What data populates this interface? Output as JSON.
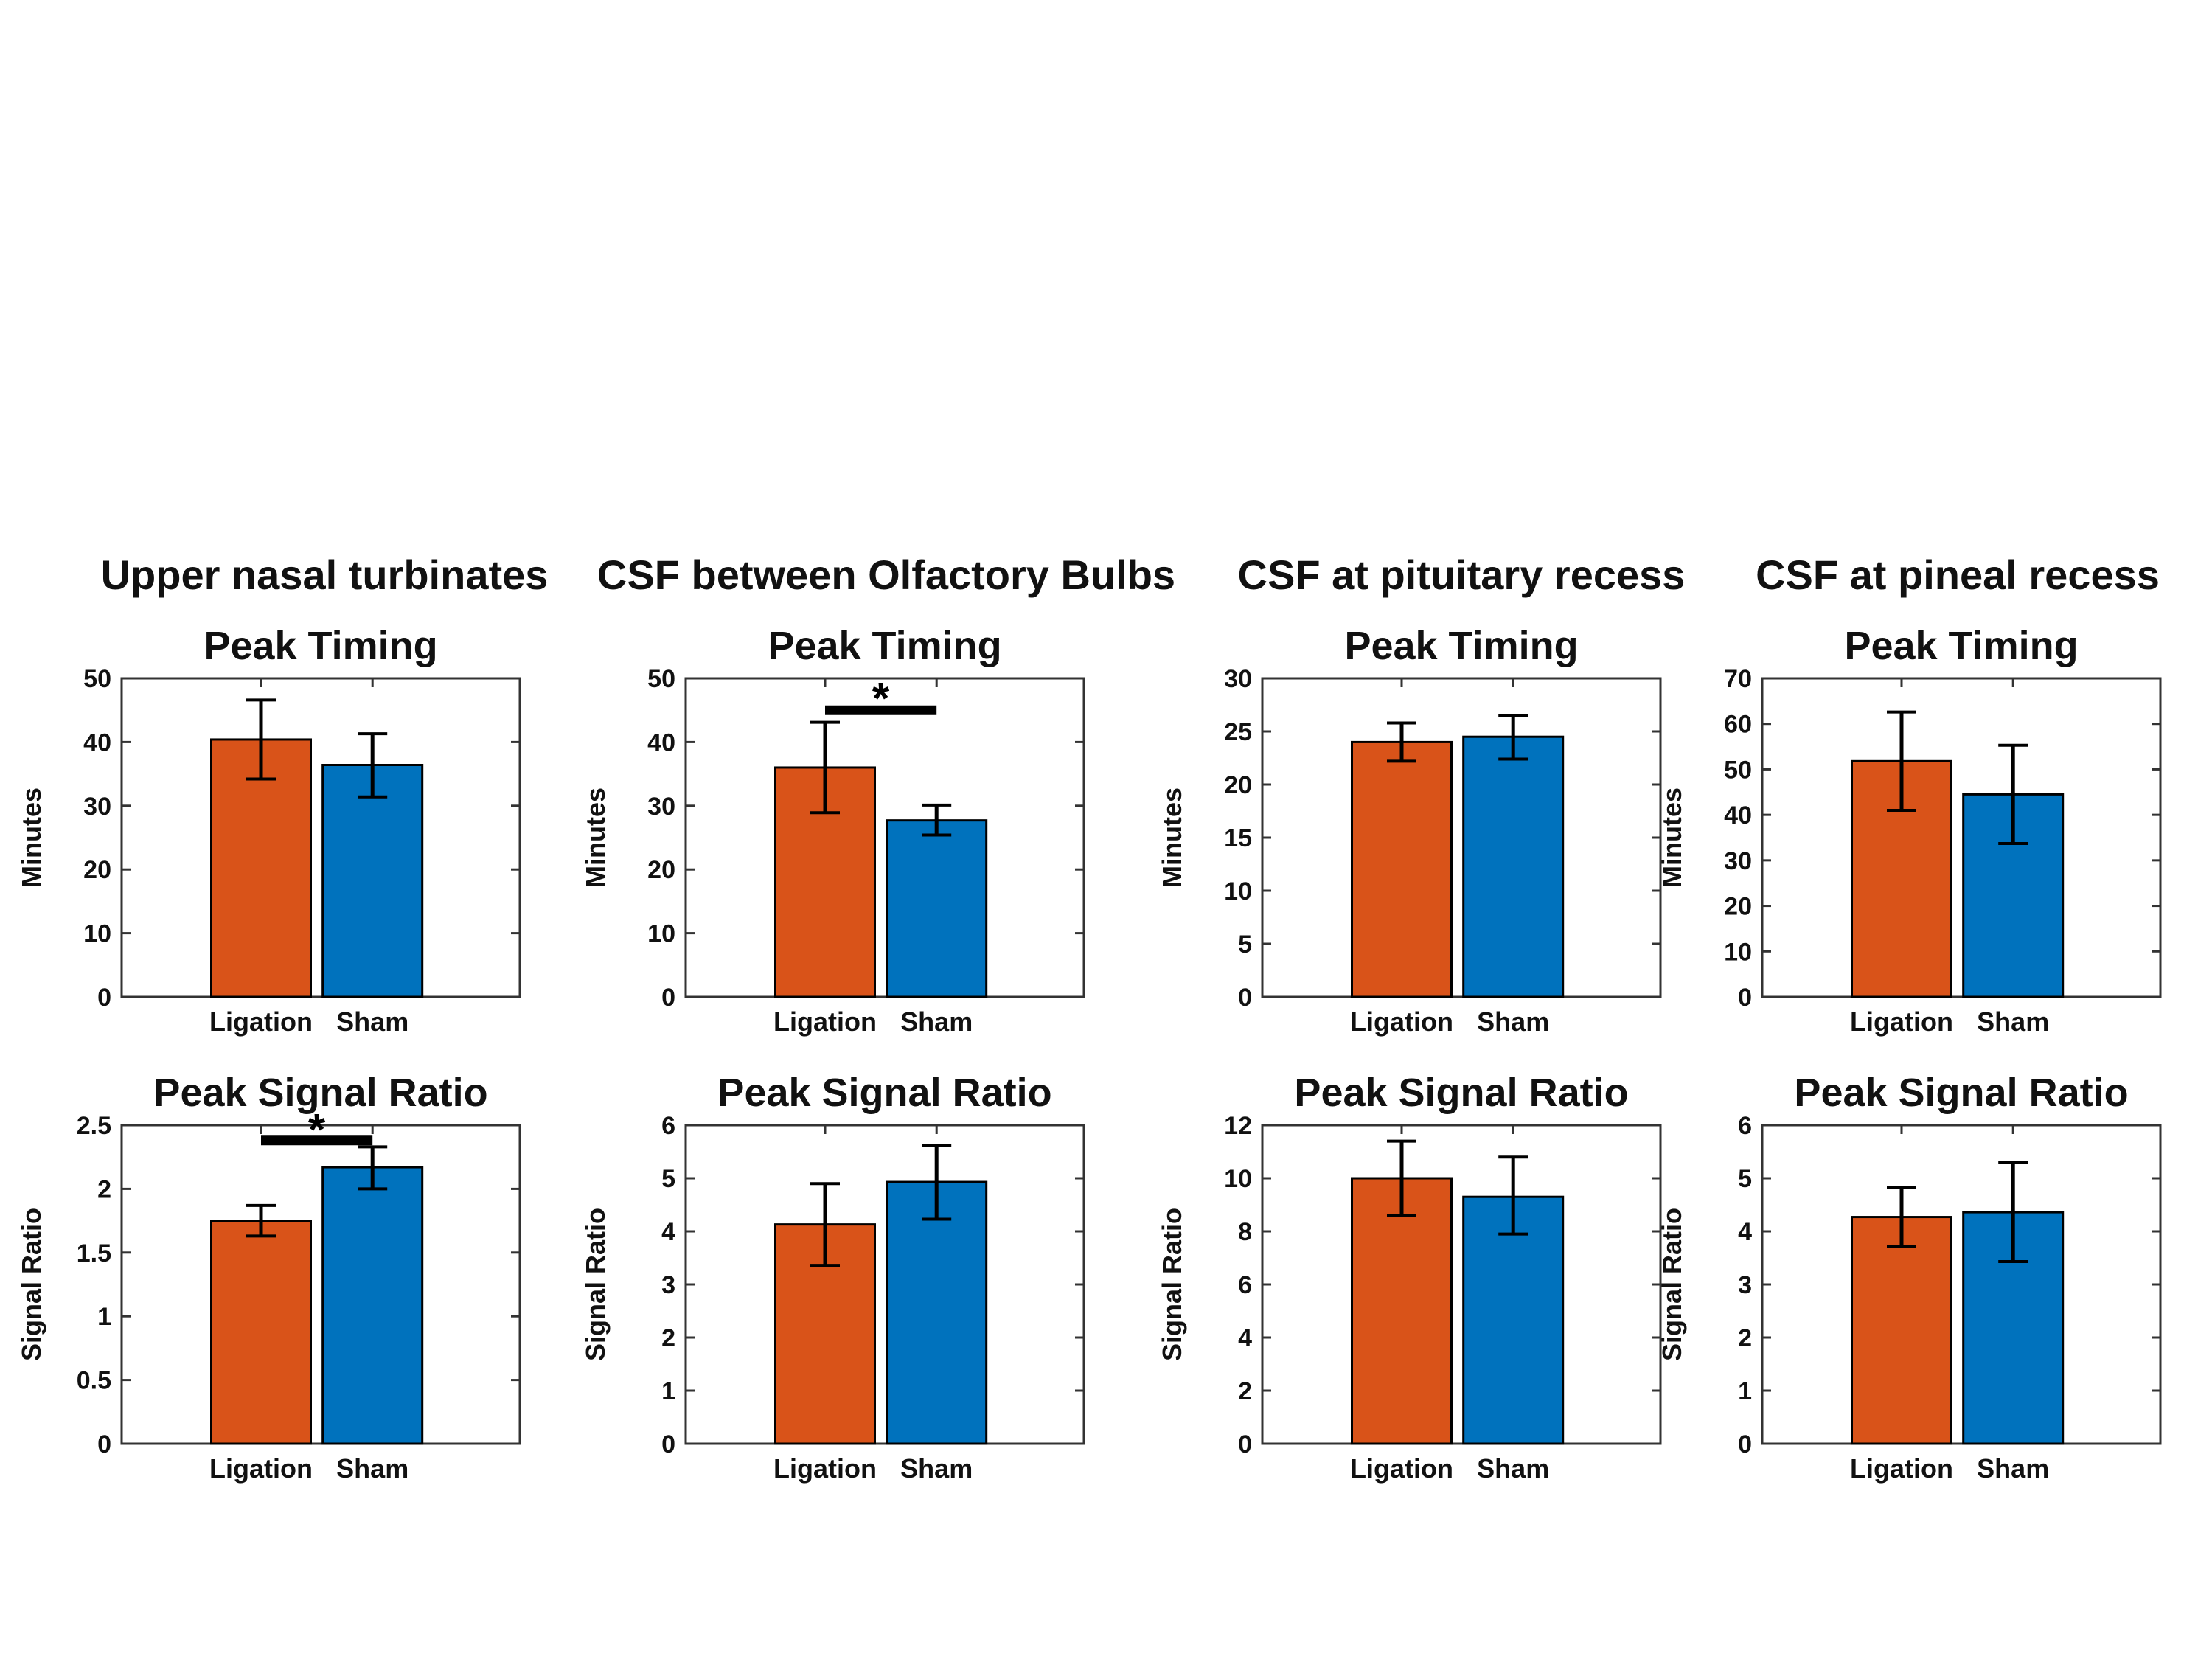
{
  "colors": {
    "ligation_bar": "#D95319",
    "sham_bar": "#0072BD",
    "error_bar": "#000000",
    "axis": "#333333",
    "text": "#111111",
    "significance": "#000000"
  },
  "chart_data": {
    "type": "bar",
    "description": "Eight bar charts (2 rows x 4 columns) comparing Ligation vs Sham groups, with SD error bars",
    "row_titles": [
      "Peak Timing",
      "Peak Signal Ratio"
    ],
    "columns": [
      {
        "header": "Upper nasal turbinates",
        "charts": [
          {
            "title": "Peak Timing",
            "ylabel": "Minutes",
            "ylim": [
              0,
              50
            ],
            "yticks": [
              0,
              10,
              20,
              30,
              40,
              50
            ],
            "categories": [
              "Ligation",
              "Sham"
            ],
            "series": [
              {
                "name": "Ligation",
                "value": 40.4,
                "err_low": 34.2,
                "err_high": 46.6
              },
              {
                "name": "Sham",
                "value": 36.4,
                "err_low": 31.4,
                "err_high": 41.3
              }
            ],
            "significance": null
          },
          {
            "title": "Peak Signal Ratio",
            "ylabel": "Signal Ratio",
            "ylim": [
              0,
              2.5
            ],
            "yticks": [
              0,
              0.5,
              1,
              1.5,
              2,
              2.5
            ],
            "categories": [
              "Ligation",
              "Sham"
            ],
            "series": [
              {
                "name": "Ligation",
                "value": 1.75,
                "err_low": 1.63,
                "err_high": 1.87
              },
              {
                "name": "Sham",
                "value": 2.17,
                "err_low": 2.0,
                "err_high": 2.33
              }
            ],
            "significance": {
              "label": "*",
              "line_y": 2.38,
              "star_y": 2.52
            }
          }
        ]
      },
      {
        "header": "CSF between Olfactory Bulbs",
        "charts": [
          {
            "title": "Peak Timing",
            "ylabel": "Minutes",
            "ylim": [
              0,
              50
            ],
            "yticks": [
              0,
              10,
              20,
              30,
              40,
              50
            ],
            "categories": [
              "Ligation",
              "Sham"
            ],
            "series": [
              {
                "name": "Ligation",
                "value": 36.0,
                "err_low": 28.9,
                "err_high": 43.1
              },
              {
                "name": "Sham",
                "value": 27.7,
                "err_low": 25.4,
                "err_high": 30.1
              }
            ],
            "significance": {
              "label": "*",
              "line_y": 45,
              "star_y": 48
            }
          },
          {
            "title": "Peak Signal Ratio",
            "ylabel": "Signal Ratio",
            "ylim": [
              0,
              6
            ],
            "yticks": [
              0,
              1,
              2,
              3,
              4,
              5,
              6
            ],
            "categories": [
              "Ligation",
              "Sham"
            ],
            "series": [
              {
                "name": "Ligation",
                "value": 4.13,
                "err_low": 3.36,
                "err_high": 4.9
              },
              {
                "name": "Sham",
                "value": 4.93,
                "err_low": 4.23,
                "err_high": 5.62
              }
            ],
            "significance": null
          }
        ]
      },
      {
        "header": "CSF at pituitary recess",
        "charts": [
          {
            "title": "Peak Timing",
            "ylabel": "Minutes",
            "ylim": [
              0,
              30
            ],
            "yticks": [
              0,
              5,
              10,
              15,
              20,
              25,
              30
            ],
            "categories": [
              "Ligation",
              "Sham"
            ],
            "series": [
              {
                "name": "Ligation",
                "value": 24.0,
                "err_low": 22.2,
                "err_high": 25.8
              },
              {
                "name": "Sham",
                "value": 24.5,
                "err_low": 22.4,
                "err_high": 26.5
              }
            ],
            "significance": null
          },
          {
            "title": "Peak Signal Ratio",
            "ylabel": "Signal Ratio",
            "ylim": [
              0,
              12
            ],
            "yticks": [
              0,
              2,
              4,
              6,
              8,
              10,
              12
            ],
            "categories": [
              "Ligation",
              "Sham"
            ],
            "series": [
              {
                "name": "Ligation",
                "value": 10.0,
                "err_low": 8.6,
                "err_high": 11.4
              },
              {
                "name": "Sham",
                "value": 9.3,
                "err_low": 7.9,
                "err_high": 10.8
              }
            ],
            "significance": null
          }
        ]
      },
      {
        "header": "CSF at pineal recess",
        "charts": [
          {
            "title": "Peak Timing",
            "ylabel": "Minutes",
            "ylim": [
              0,
              70
            ],
            "yticks": [
              0,
              10,
              20,
              30,
              40,
              50,
              60,
              70
            ],
            "categories": [
              "Ligation",
              "Sham"
            ],
            "series": [
              {
                "name": "Ligation",
                "value": 51.8,
                "err_low": 41.0,
                "err_high": 62.6
              },
              {
                "name": "Sham",
                "value": 44.5,
                "err_low": 33.7,
                "err_high": 55.3
              }
            ],
            "significance": null
          },
          {
            "title": "Peak Signal Ratio",
            "ylabel": "Signal Ratio",
            "ylim": [
              0,
              6
            ],
            "yticks": [
              0,
              1,
              2,
              3,
              4,
              5,
              6
            ],
            "categories": [
              "Ligation",
              "Sham"
            ],
            "series": [
              {
                "name": "Ligation",
                "value": 4.27,
                "err_low": 3.72,
                "err_high": 4.82
              },
              {
                "name": "Sham",
                "value": 4.36,
                "err_low": 3.43,
                "err_high": 5.3
              }
            ],
            "significance": null
          }
        ]
      }
    ]
  }
}
